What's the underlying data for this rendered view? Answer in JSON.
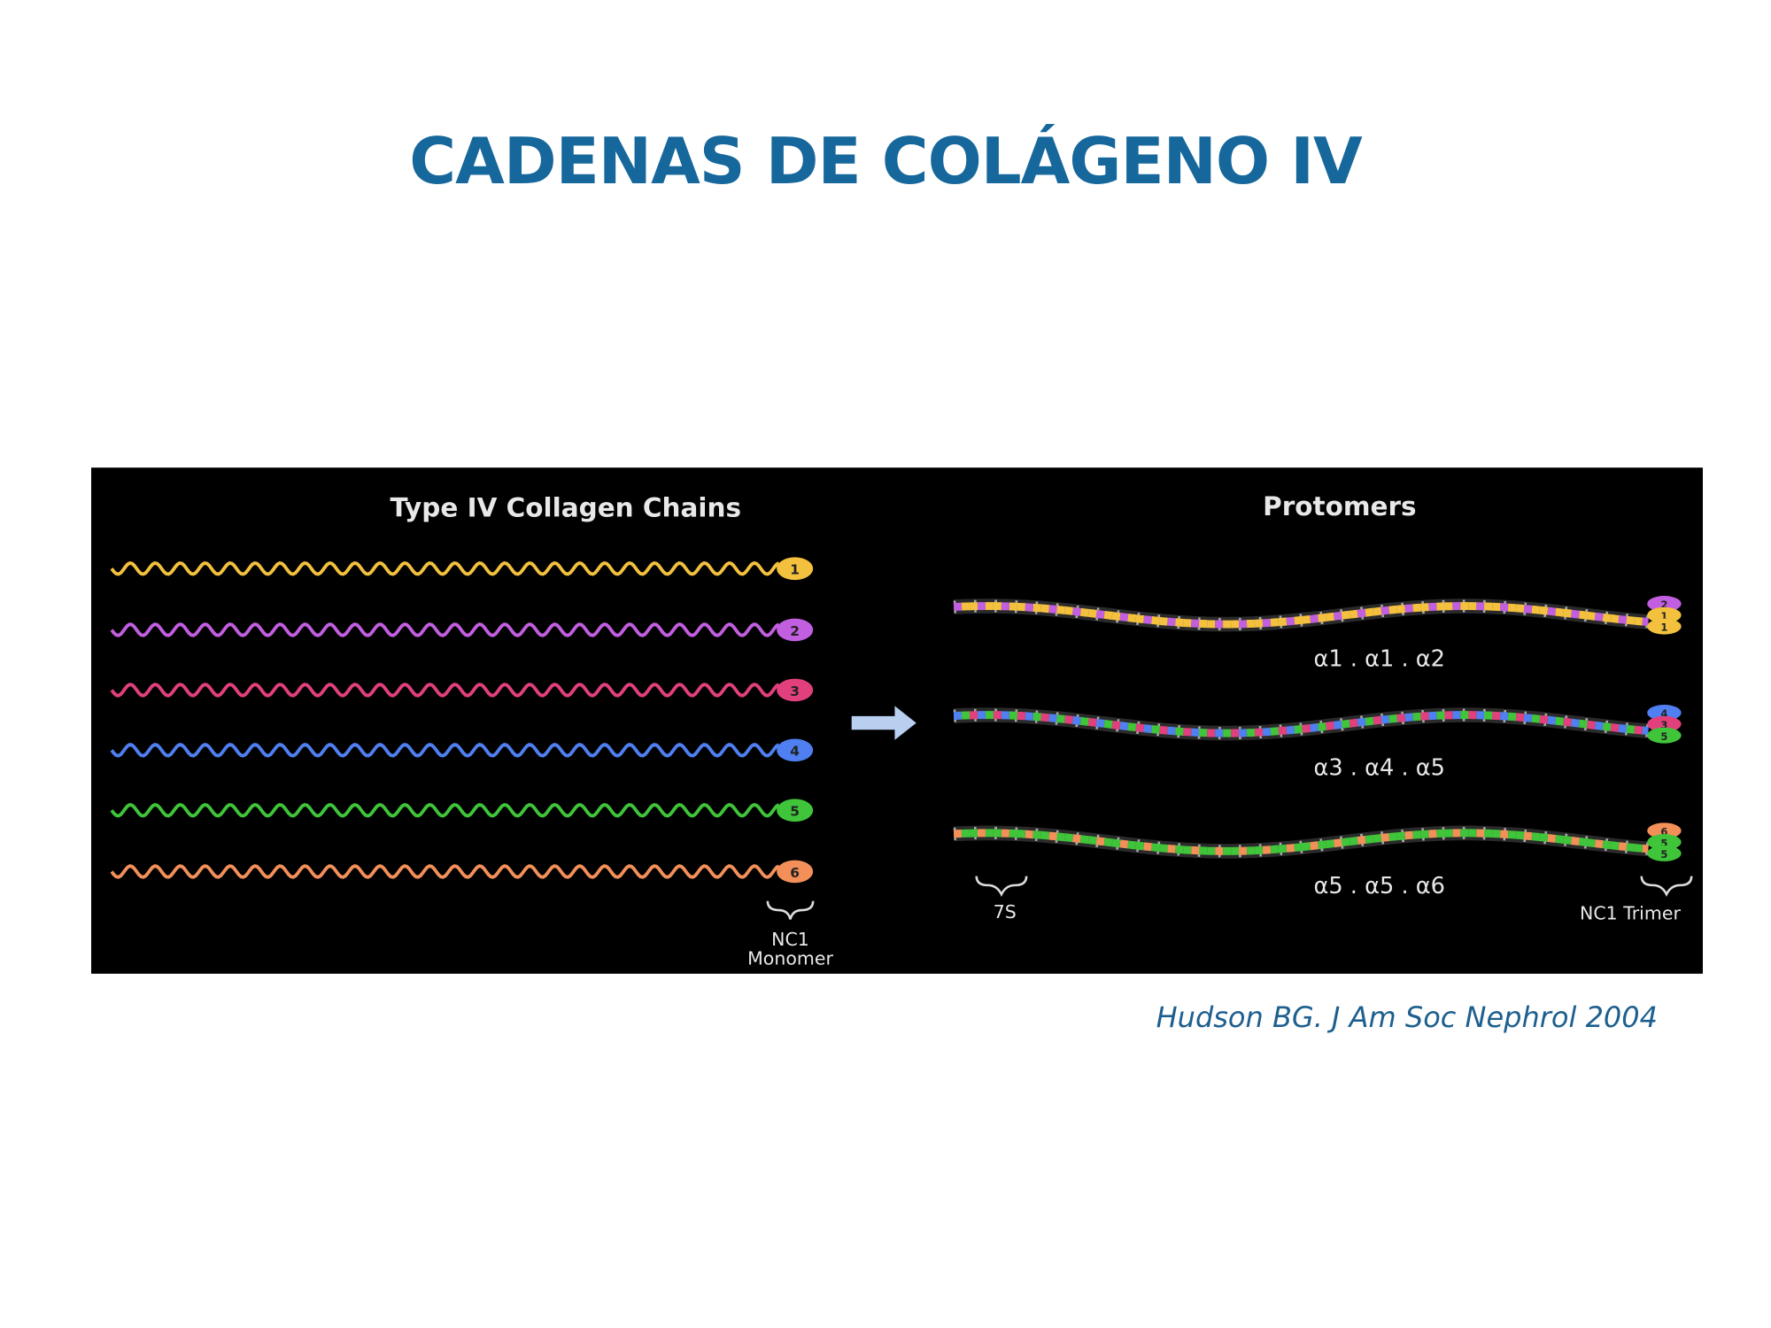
{
  "title": "CADENAS DE COLÁGENO IV",
  "figure": {
    "left_title": "Type IV Collagen Chains",
    "chains": [
      {
        "label": "1",
        "color": "#f3c13e"
      },
      {
        "label": "2",
        "color": "#c25ee0"
      },
      {
        "label": "3",
        "color": "#e2407c"
      },
      {
        "label": "4",
        "color": "#4f7ff0"
      },
      {
        "label": "5",
        "color": "#3fc43a"
      },
      {
        "label": "6",
        "color": "#f3905a"
      }
    ],
    "monomer_label": [
      "NC1",
      "Monomer"
    ],
    "right_title": "Protomers",
    "protomers": [
      {
        "label": "α1 . α1 . α2",
        "nc1_labels": [
          "2",
          "1",
          "1"
        ]
      },
      {
        "label": "α3 . α4 . α5",
        "nc1_labels": [
          "4",
          "3",
          "5"
        ]
      },
      {
        "label": "α5 . α5 . α6",
        "nc1_labels": [
          "6",
          "5",
          "5"
        ]
      }
    ],
    "label_7s": "7S",
    "trimer_label": "NC1 Trimer"
  },
  "citation": "Hudson BG. J Am Soc Nephrol 2004"
}
